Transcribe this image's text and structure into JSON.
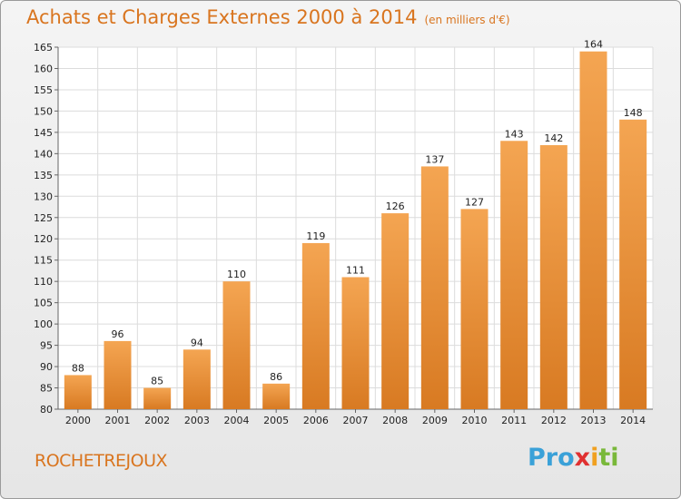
{
  "header": {
    "title": "Achats et Charges Externes 2000 à 2014",
    "unit": "(en milliers d'€)"
  },
  "footer": {
    "place": "ROCHETREJOUX",
    "logo": [
      "Pro",
      "x",
      "i",
      "ti"
    ]
  },
  "colors": {
    "bar_top": "#f4a552",
    "bar_bottom": "#d87a22",
    "accent": "#d9751f"
  },
  "chart_data": {
    "type": "bar",
    "title": "Achats et Charges Externes 2000 à 2014",
    "subtitle": "(en milliers d'€)",
    "categories": [
      "2000",
      "2001",
      "2002",
      "2003",
      "2004",
      "2005",
      "2006",
      "2007",
      "2008",
      "2009",
      "2010",
      "2011",
      "2012",
      "2013",
      "2014"
    ],
    "values": [
      88,
      96,
      85,
      94,
      110,
      86,
      119,
      111,
      126,
      137,
      127,
      143,
      142,
      164,
      148
    ],
    "ylim": [
      80,
      165
    ],
    "yticks": [
      80,
      85,
      90,
      95,
      100,
      105,
      110,
      115,
      120,
      125,
      130,
      135,
      140,
      145,
      150,
      155,
      160,
      165
    ],
    "grid": true,
    "xlabel": "",
    "ylabel": ""
  }
}
